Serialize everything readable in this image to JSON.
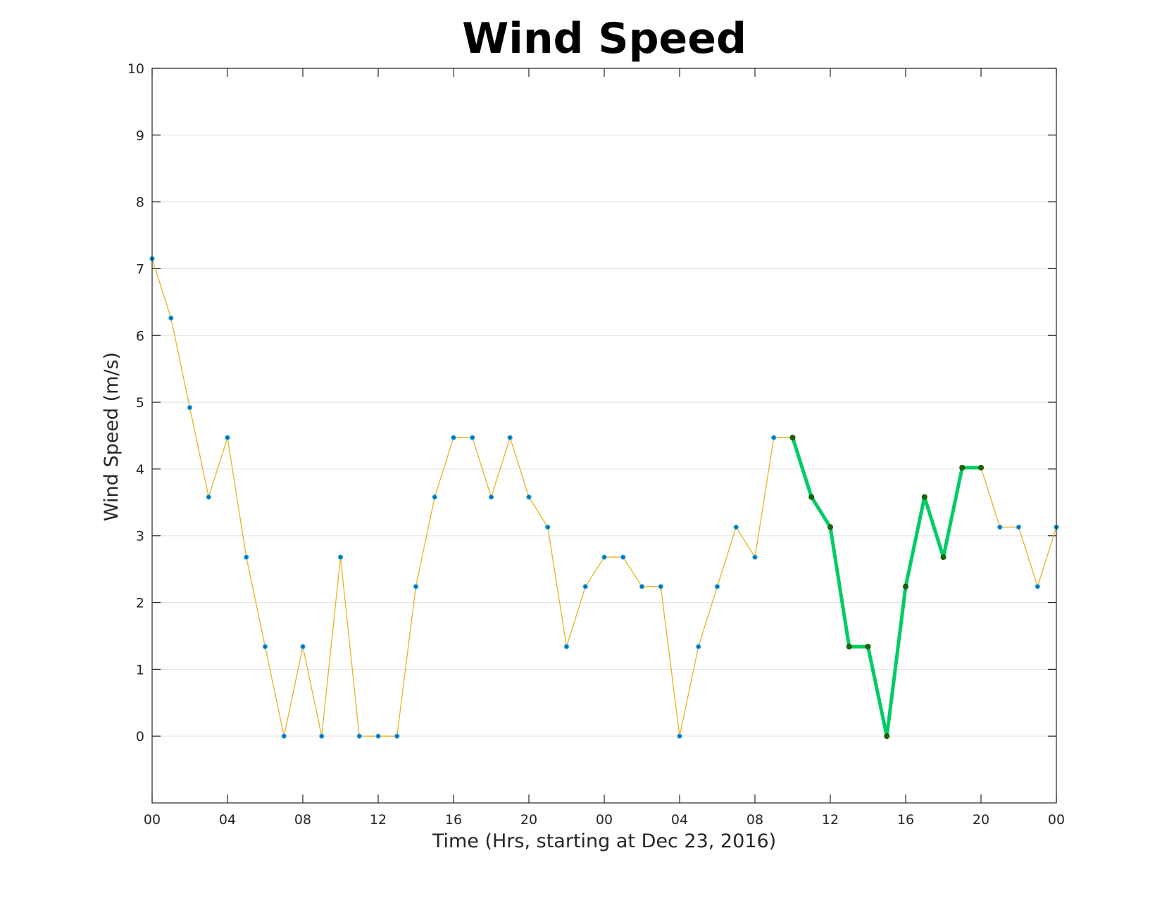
{
  "chart_data": {
    "type": "line",
    "title": "Wind Speed",
    "xlabel": "Time (Hrs, starting at Dec 23, 2016)",
    "ylabel": "Wind Speed (m/s)",
    "xlim": [
      0,
      48
    ],
    "ylim": [
      -1,
      10
    ],
    "yticks": [
      0,
      1,
      2,
      3,
      4,
      5,
      6,
      7,
      8,
      9,
      10
    ],
    "xticks": [
      0,
      4,
      8,
      12,
      16,
      20,
      24,
      28,
      32,
      36,
      40,
      44,
      48
    ],
    "xtick_labels": [
      "00",
      "04",
      "08",
      "12",
      "16",
      "20",
      "00",
      "04",
      "08",
      "12",
      "16",
      "20",
      "00"
    ],
    "grid": true,
    "series": [
      {
        "color": "#EDB120",
        "marker_color": "#0072BD",
        "x": [
          0,
          1,
          2,
          3,
          4,
          5,
          6,
          7,
          8,
          9,
          10,
          11,
          12,
          13,
          14,
          15,
          16,
          17,
          18,
          19,
          20,
          21,
          22,
          23,
          24,
          25,
          26,
          27,
          28,
          29,
          30,
          31,
          32,
          33,
          34,
          35,
          36,
          37,
          38,
          39,
          40,
          41,
          42,
          43,
          44,
          45,
          46,
          47,
          48
        ],
        "values": [
          7.15,
          6.26,
          4.92,
          3.58,
          4.47,
          2.68,
          1.34,
          0,
          1.34,
          0,
          2.68,
          0,
          0,
          0,
          2.24,
          3.58,
          4.47,
          4.47,
          3.58,
          4.47,
          3.58,
          3.13,
          1.34,
          2.24,
          2.68,
          2.68,
          2.24,
          2.24,
          0,
          1.34,
          2.24,
          3.13,
          2.68,
          4.47,
          4.47,
          3.58,
          3.13,
          1.34,
          1.34,
          0,
          2.24,
          3.58,
          2.68,
          4.02,
          4.02,
          3.13,
          3.13,
          2.24,
          3.13
        ]
      },
      {
        "color": "#00CC66",
        "marker_color": "#1A6600",
        "x": [
          34,
          35,
          36,
          37,
          38,
          39,
          40,
          41,
          42,
          43,
          44
        ],
        "values": [
          4.47,
          3.58,
          3.13,
          1.34,
          1.34,
          0,
          2.24,
          3.58,
          2.68,
          4.02,
          4.02
        ]
      }
    ]
  }
}
